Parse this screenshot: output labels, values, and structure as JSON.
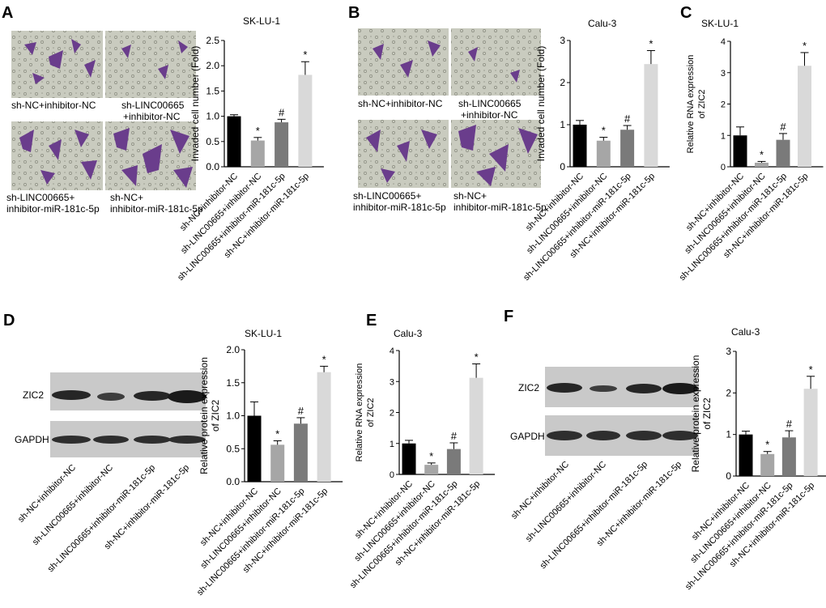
{
  "panels": {
    "A": {
      "letter": "A",
      "captions": [
        "sh-NC+inhibitor-NC",
        "sh-LINC00665",
        "+inhibitor-NC",
        "sh-LINC00665+",
        "inhibitor-miR-181c-5p",
        "sh-NC+",
        "inhibitor-miR-181c-5p"
      ]
    },
    "B": {
      "letter": "B",
      "captions": [
        "sh-NC+inhibitor-NC",
        "sh-LINC00665",
        "+inhibitor-NC",
        "sh-LINC00665+",
        "inhibitor-miR-181c-5p",
        "sh-NC+",
        "inhibitor-miR-181c-5p"
      ]
    },
    "C": {
      "letter": "C"
    },
    "D": {
      "letter": "D",
      "blot_labels": [
        "ZIC2",
        "GAPDH"
      ]
    },
    "E": {
      "letter": "E"
    },
    "F": {
      "letter": "F",
      "blot_labels": [
        "ZIC2",
        "GAPDH"
      ]
    }
  },
  "blot_lane_labels": [
    "sh-NC+inhibitor-NC",
    "sh-LINC00665+inhibitor-NC",
    "sh-LINC00665+inhibitor-miR-181c-5p",
    "sh-NC+inhibitor-miR-181c-5p"
  ],
  "colors": {
    "bar1": "#000000",
    "bar2": "#a6a6a6",
    "bar3": "#7a7a7a",
    "bar4": "#d9d9d9",
    "stain": "#6a3d8c",
    "membrane": "#c9cbbf"
  },
  "chart_data": [
    {
      "id": "A",
      "type": "bar",
      "title": "SK-LU-1",
      "ylabel": "Invaded cell number (Fold)",
      "ylim": [
        0,
        2.5
      ],
      "yticks": [
        "0.0",
        "0.5",
        "1.0",
        "1.5",
        "2.0",
        "2.5"
      ],
      "categories": [
        "sh-NC+inhibitor-NC",
        "sh-LINC00665+inhibitor-NC",
        "sh-LINC00665+inhibitor-miR-181c-5p",
        "sh-NC+inhibitor-miR-181c-5p"
      ],
      "values": [
        1.0,
        0.52,
        0.88,
        1.82
      ],
      "errors": [
        0.03,
        0.06,
        0.06,
        0.26
      ],
      "annotations": [
        "",
        "*",
        "#",
        "*"
      ]
    },
    {
      "id": "B",
      "type": "bar",
      "title": "Calu-3",
      "ylabel": "Invaded cell number (Fold)",
      "ylim": [
        0,
        3
      ],
      "yticks": [
        "0",
        "1",
        "2",
        "3"
      ],
      "categories": [
        "sh-NC+inhibitor-NC",
        "sh-LINC00665+inhibitor-NC",
        "sh-LINC00665+inhibitor-miR-181c-5p",
        "sh-NC+inhibitor-miR-181c-5p"
      ],
      "values": [
        1.0,
        0.62,
        0.88,
        2.44
      ],
      "errors": [
        0.1,
        0.08,
        0.1,
        0.32
      ],
      "annotations": [
        "",
        "*",
        "#",
        "*"
      ]
    },
    {
      "id": "C",
      "type": "bar",
      "title": "SK-LU-1",
      "ylabel": "Relative RNA expression of ZIC2",
      "ylim": [
        0,
        4
      ],
      "yticks": [
        "0",
        "1",
        "2",
        "3",
        "4"
      ],
      "categories": [
        "sh-NC+inhibitor-NC",
        "sh-LINC00665+inhibitor-NC",
        "sh-LINC00665+inhibitor-miR-181c-5p",
        "sh-NC+inhibitor-miR-181c-5p"
      ],
      "values": [
        1.0,
        0.13,
        0.86,
        3.22
      ],
      "errors": [
        0.27,
        0.04,
        0.2,
        0.42
      ],
      "annotations": [
        "",
        "*",
        "#",
        "*"
      ]
    },
    {
      "id": "D",
      "type": "bar",
      "title": "SK-LU-1",
      "ylabel": "Relative protein expression of ZIC2",
      "ylim": [
        0,
        2.0
      ],
      "yticks": [
        "0.0",
        "0.5",
        "1.0",
        "1.5",
        "2.0"
      ],
      "categories": [
        "sh-NC+inhibitor-NC",
        "sh-LINC00665+inhibitor-NC",
        "sh-LINC00665+inhibitor-miR-181c-5p",
        "sh-NC+inhibitor-miR-181c-5p"
      ],
      "values": [
        1.0,
        0.56,
        0.88,
        1.66
      ],
      "errors": [
        0.21,
        0.06,
        0.09,
        0.09
      ],
      "annotations": [
        "",
        "*",
        "#",
        "*"
      ]
    },
    {
      "id": "E",
      "type": "bar",
      "title": "Calu-3",
      "ylabel": "Relative RNA expression of ZIC2",
      "ylim": [
        0,
        4
      ],
      "yticks": [
        "0",
        "1",
        "2",
        "3",
        "4"
      ],
      "categories": [
        "sh-NC+inhibitor-NC",
        "sh-LINC00665+inhibitor-NC",
        "sh-LINC00665+inhibitor-miR-181c-5p",
        "sh-NC+inhibitor-miR-181c-5p"
      ],
      "values": [
        1.0,
        0.31,
        0.82,
        3.12
      ],
      "errors": [
        0.1,
        0.06,
        0.2,
        0.45
      ],
      "annotations": [
        "",
        "*",
        "#",
        "*"
      ]
    },
    {
      "id": "F",
      "type": "bar",
      "title": "Calu-3",
      "ylabel": "Relative protein expression of ZIC2",
      "ylim": [
        0,
        3
      ],
      "yticks": [
        "0",
        "1",
        "2",
        "3"
      ],
      "categories": [
        "sh-NC+inhibitor-NC",
        "sh-LINC00665+inhibitor-NC",
        "sh-LINC00665+inhibitor-miR-181c-5p",
        "sh-NC+inhibitor-miR-181c-5p"
      ],
      "values": [
        1.0,
        0.53,
        0.93,
        2.1
      ],
      "errors": [
        0.08,
        0.06,
        0.16,
        0.3
      ],
      "annotations": [
        "",
        "*",
        "#",
        "*"
      ]
    }
  ]
}
